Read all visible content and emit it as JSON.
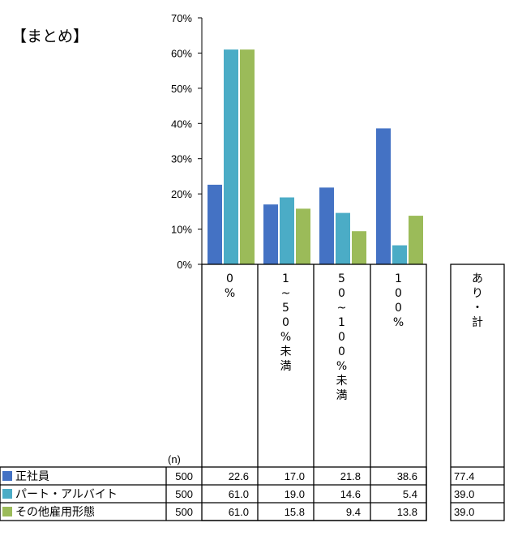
{
  "summary_label": "【まとめ】",
  "n_label": "(n)",
  "chart_data": {
    "type": "bar",
    "y_ticks": [
      "0%",
      "10%",
      "20%",
      "30%",
      "40%",
      "50%",
      "60%",
      "70%"
    ],
    "ylim": [
      0,
      70
    ],
    "categories": [
      [
        "0",
        "%"
      ],
      [
        "1",
        "~",
        "5",
        "0",
        "%",
        "未",
        "満"
      ],
      [
        "5",
        "0",
        "~",
        "1",
        "0",
        "0",
        "%",
        "未",
        "満"
      ],
      [
        "1",
        "0",
        "0",
        "%"
      ]
    ],
    "extra_category": [
      "あ",
      "り",
      "・",
      "計"
    ],
    "series": [
      {
        "name": "正社員",
        "n": "500",
        "color": "#4472c4",
        "values": [
          22.6,
          17.0,
          21.8,
          38.6
        ],
        "labels": [
          "22.6",
          "17.0",
          "21.8",
          "38.6"
        ],
        "extra": "77.4"
      },
      {
        "name": "パート・アルバイト",
        "n": "500",
        "color": "#4bacc6",
        "values": [
          61.0,
          19.0,
          14.6,
          5.4
        ],
        "labels": [
          "61.0",
          "19.0",
          "14.6",
          "5.4"
        ],
        "extra": "39.0"
      },
      {
        "name": "その他雇用形態",
        "n": "500",
        "color": "#9bbb59",
        "values": [
          61.0,
          15.8,
          9.4,
          13.8
        ],
        "labels": [
          "61.0",
          "15.8",
          "9.4",
          "13.8"
        ],
        "extra": "39.0"
      }
    ]
  }
}
